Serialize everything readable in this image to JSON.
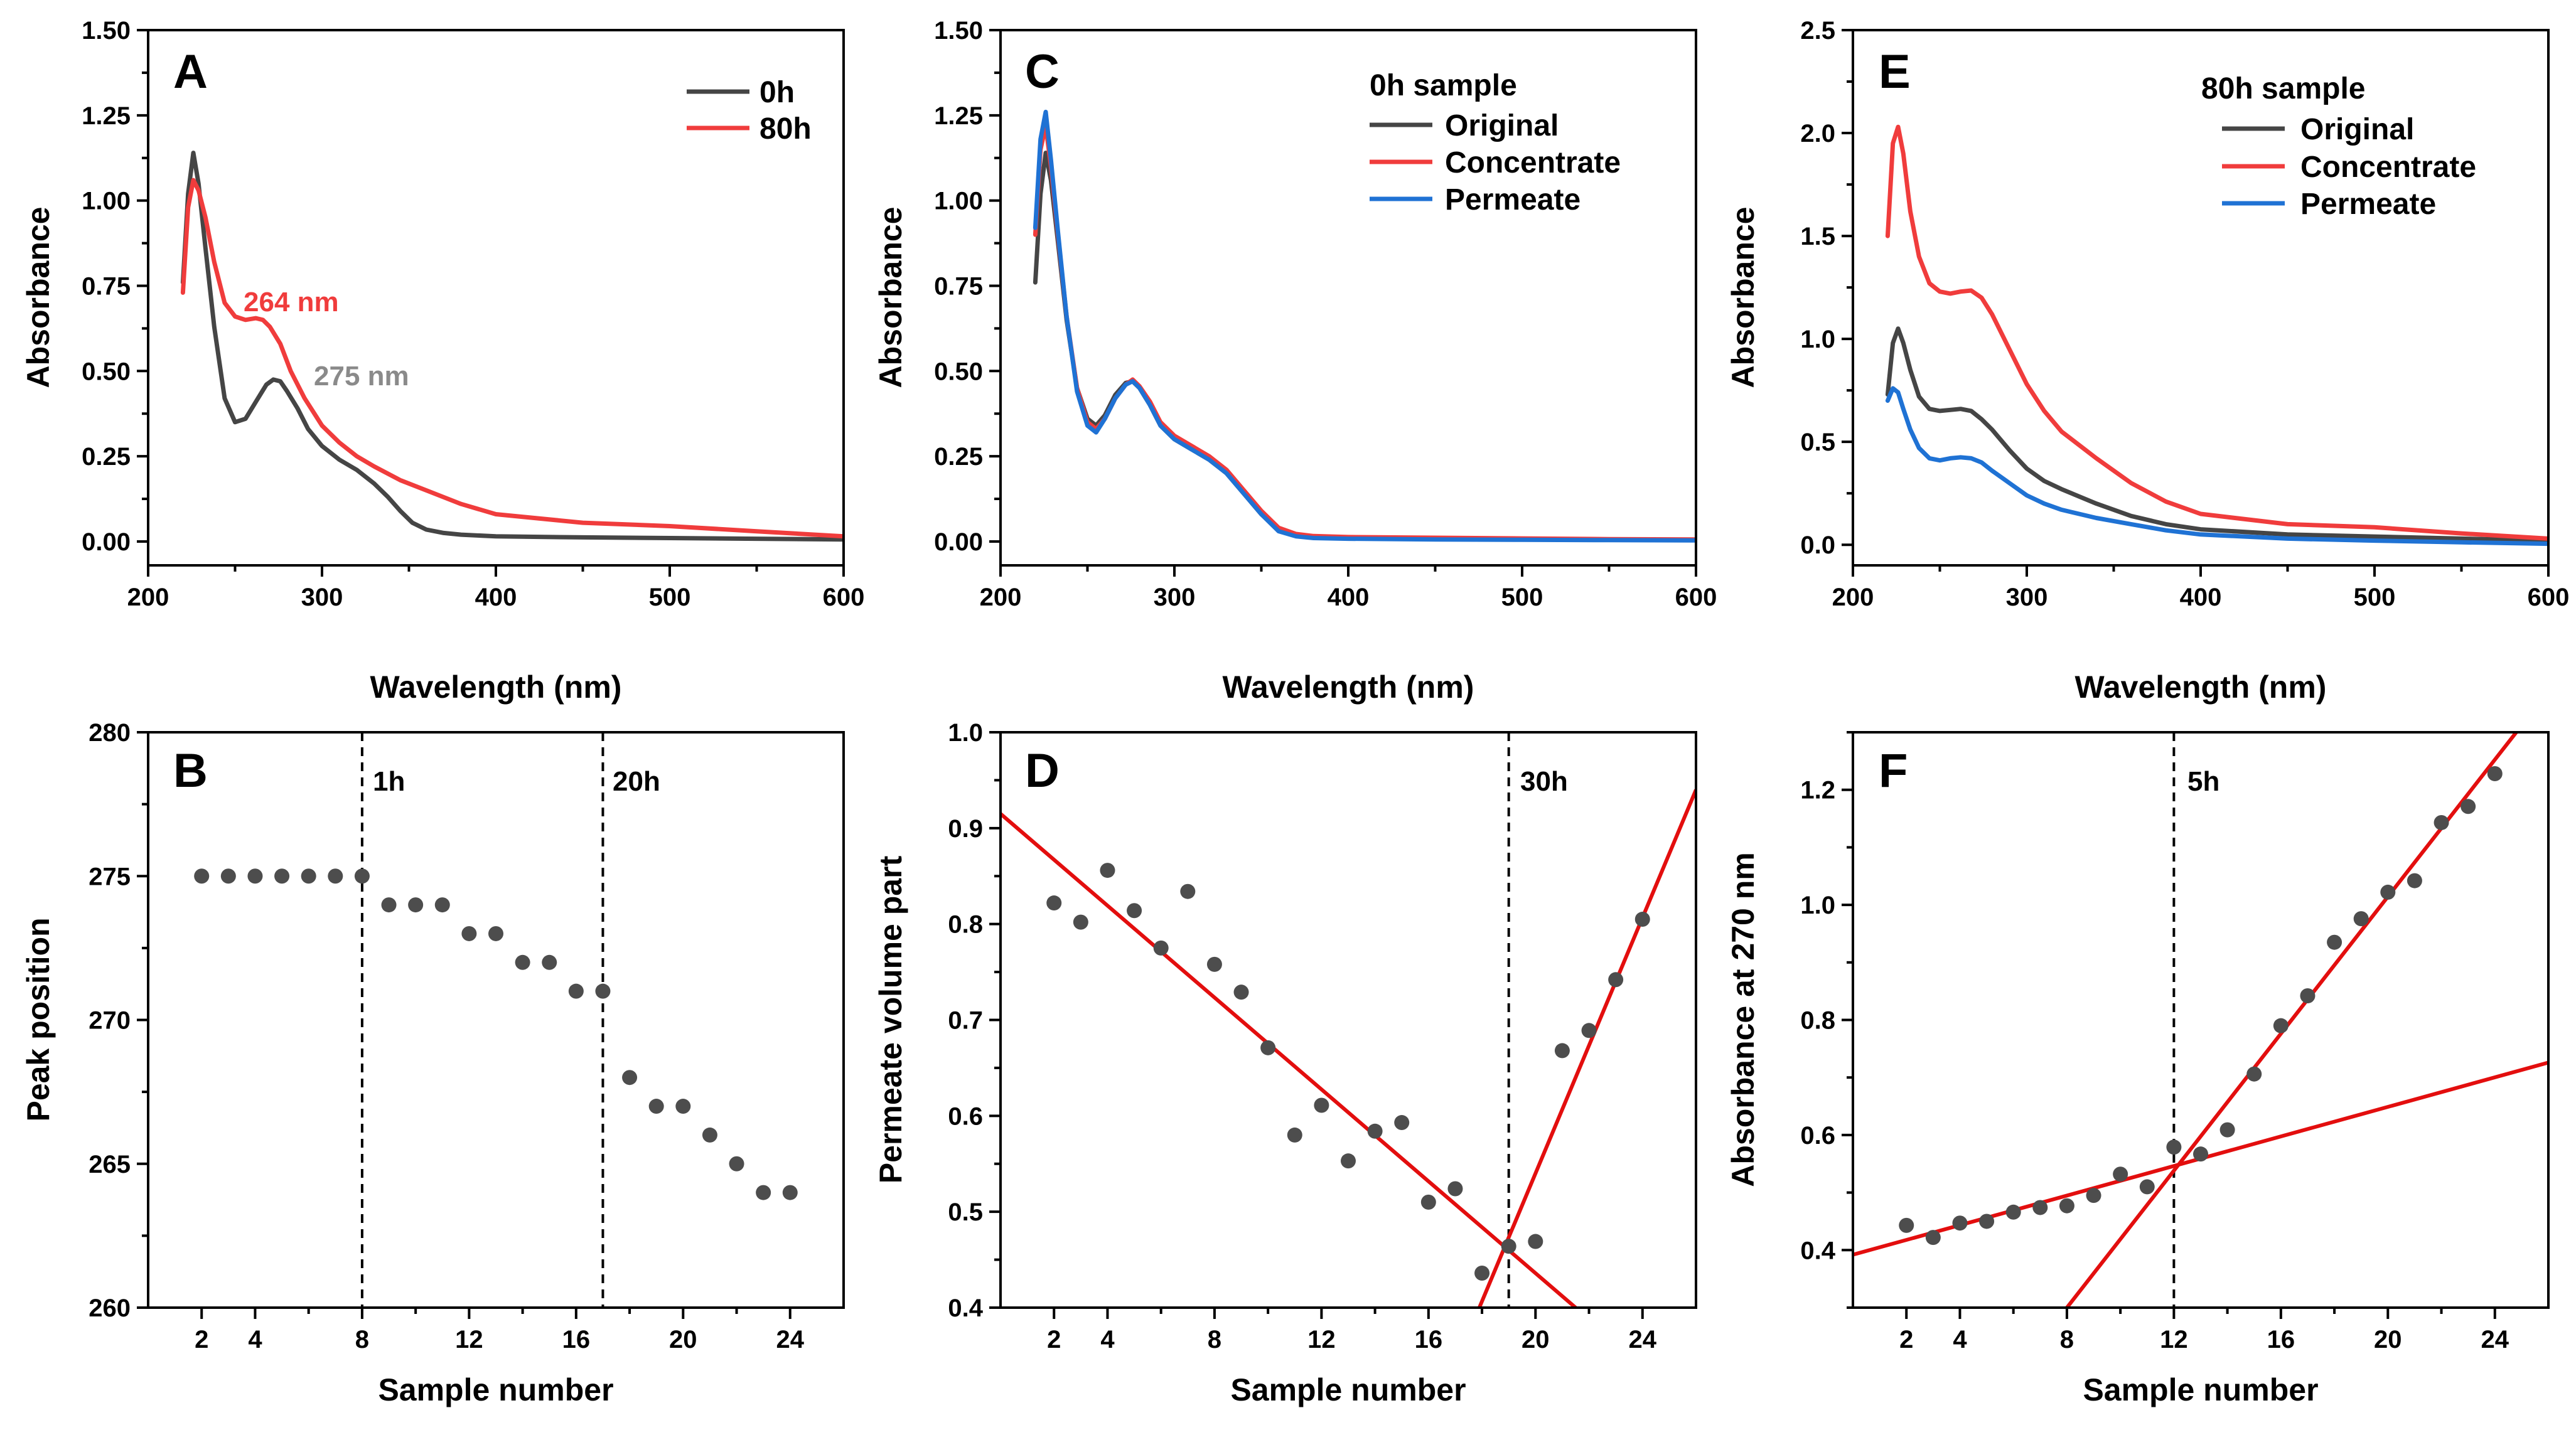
{
  "colors": {
    "h0": "#454545",
    "h80": "#f03c3c",
    "permeate": "#1f72d4",
    "fit": "#e30e0e",
    "dot": "#4d4d4d",
    "annot_gray": "#8a8a8a"
  },
  "chart_data": [
    {
      "panel": "A",
      "type": "line",
      "xlabel": "Wavelength (nm)",
      "ylabel": "Absorbance",
      "xlim": [
        200,
        600
      ],
      "ylim": [
        -0.07,
        1.5
      ],
      "xticks": [
        "200",
        "300",
        "400",
        "500",
        "600"
      ],
      "yticks": [
        "0.00",
        "0.25",
        "0.50",
        "0.75",
        "1.00",
        "1.25",
        "1.50"
      ],
      "legend": {
        "position": "top-right",
        "entries": [
          "0h",
          "80h"
        ]
      },
      "annotations": [
        {
          "text": "264 nm",
          "series": "80h"
        },
        {
          "text": "275 nm",
          "series": "0h"
        }
      ],
      "series": [
        {
          "name": "0h",
          "color": "#454545",
          "x": [
            220,
            223,
            226,
            229,
            233,
            238,
            244,
            250,
            256,
            262,
            268,
            272,
            276,
            280,
            286,
            292,
            300,
            310,
            320,
            330,
            338,
            345,
            352,
            360,
            370,
            380,
            400,
            450,
            500,
            550,
            600
          ],
          "y": [
            0.76,
            1.02,
            1.14,
            1.05,
            0.86,
            0.63,
            0.42,
            0.35,
            0.36,
            0.41,
            0.46,
            0.475,
            0.47,
            0.44,
            0.39,
            0.33,
            0.28,
            0.24,
            0.21,
            0.17,
            0.13,
            0.09,
            0.055,
            0.035,
            0.025,
            0.02,
            0.015,
            0.012,
            0.01,
            0.008,
            0.006
          ]
        },
        {
          "name": "80h",
          "color": "#f03c3c",
          "x": [
            220,
            223,
            226,
            229,
            233,
            238,
            244,
            250,
            256,
            262,
            266,
            270,
            276,
            282,
            290,
            300,
            310,
            320,
            330,
            345,
            360,
            380,
            400,
            450,
            500,
            550,
            600
          ],
          "y": [
            0.73,
            0.98,
            1.06,
            1.03,
            0.95,
            0.82,
            0.7,
            0.66,
            0.65,
            0.655,
            0.65,
            0.63,
            0.58,
            0.5,
            0.42,
            0.34,
            0.29,
            0.25,
            0.22,
            0.18,
            0.15,
            0.11,
            0.08,
            0.055,
            0.045,
            0.03,
            0.015
          ]
        }
      ]
    },
    {
      "panel": "C",
      "type": "line",
      "xlabel": "Wavelength (nm)",
      "ylabel": "Absorbance",
      "xlim": [
        200,
        600
      ],
      "ylim": [
        -0.07,
        1.5
      ],
      "xticks": [
        "200",
        "300",
        "400",
        "500",
        "600"
      ],
      "yticks": [
        "0.00",
        "0.25",
        "0.50",
        "0.75",
        "1.00",
        "1.25",
        "1.50"
      ],
      "legend": {
        "position": "top-right",
        "title": "0h sample",
        "entries": [
          "Original",
          "Concentrate",
          "Permeate"
        ]
      },
      "series": [
        {
          "name": "Original",
          "color": "#454545",
          "x": [
            220,
            223,
            226,
            229,
            233,
            238,
            244,
            250,
            255,
            260,
            266,
            272,
            276,
            280,
            286,
            292,
            300,
            310,
            320,
            330,
            340,
            350,
            360,
            370,
            380,
            400,
            450,
            500,
            550,
            600
          ],
          "y": [
            0.76,
            1.02,
            1.14,
            1.06,
            0.88,
            0.65,
            0.45,
            0.36,
            0.34,
            0.37,
            0.43,
            0.465,
            0.47,
            0.45,
            0.4,
            0.34,
            0.3,
            0.27,
            0.24,
            0.2,
            0.14,
            0.08,
            0.035,
            0.02,
            0.015,
            0.012,
            0.01,
            0.008,
            0.006,
            0.005
          ]
        },
        {
          "name": "Concentrate",
          "color": "#f03c3c",
          "x": [
            220,
            223,
            226,
            229,
            233,
            238,
            244,
            250,
            255,
            260,
            266,
            272,
            276,
            280,
            286,
            292,
            300,
            310,
            320,
            330,
            340,
            350,
            360,
            370,
            380,
            400,
            450,
            500,
            550,
            600
          ],
          "y": [
            0.9,
            1.15,
            1.22,
            1.1,
            0.9,
            0.66,
            0.45,
            0.35,
            0.33,
            0.36,
            0.42,
            0.46,
            0.475,
            0.455,
            0.41,
            0.35,
            0.31,
            0.28,
            0.25,
            0.21,
            0.15,
            0.09,
            0.04,
            0.022,
            0.016,
            0.013,
            0.011,
            0.009,
            0.007,
            0.006
          ]
        },
        {
          "name": "Permeate",
          "color": "#1f72d4",
          "x": [
            220,
            223,
            226,
            229,
            233,
            238,
            244,
            250,
            255,
            260,
            266,
            272,
            276,
            280,
            286,
            292,
            300,
            310,
            320,
            330,
            340,
            350,
            360,
            370,
            380,
            400,
            450,
            500,
            550,
            600
          ],
          "y": [
            0.92,
            1.18,
            1.26,
            1.12,
            0.91,
            0.66,
            0.44,
            0.34,
            0.32,
            0.36,
            0.42,
            0.46,
            0.47,
            0.45,
            0.4,
            0.34,
            0.3,
            0.27,
            0.24,
            0.2,
            0.14,
            0.08,
            0.03,
            0.015,
            0.01,
            0.008,
            0.006,
            0.005,
            0.004,
            0.003
          ]
        }
      ]
    },
    {
      "panel": "E",
      "type": "line",
      "xlabel": "Wavelength (nm)",
      "ylabel": "Absorbance",
      "xlim": [
        200,
        600
      ],
      "ylim": [
        -0.1,
        2.5
      ],
      "xticks": [
        "200",
        "300",
        "400",
        "500",
        "600"
      ],
      "yticks": [
        "0.0",
        "0.5",
        "1.0",
        "1.5",
        "2.0",
        "2.5"
      ],
      "legend": {
        "position": "top-right",
        "title": "80h sample",
        "entries": [
          "Original",
          "Concentrate",
          "Permeate"
        ]
      },
      "series": [
        {
          "name": "Original",
          "color": "#454545",
          "x": [
            220,
            223,
            226,
            229,
            233,
            238,
            244,
            250,
            256,
            262,
            268,
            274,
            280,
            290,
            300,
            310,
            320,
            340,
            360,
            380,
            400,
            450,
            500,
            550,
            600
          ],
          "y": [
            0.73,
            0.98,
            1.05,
            0.98,
            0.85,
            0.72,
            0.66,
            0.65,
            0.655,
            0.66,
            0.65,
            0.61,
            0.56,
            0.46,
            0.37,
            0.31,
            0.27,
            0.2,
            0.14,
            0.1,
            0.075,
            0.05,
            0.04,
            0.03,
            0.02
          ]
        },
        {
          "name": "Concentrate",
          "color": "#f03c3c",
          "x": [
            220,
            223,
            226,
            229,
            233,
            238,
            244,
            250,
            256,
            262,
            268,
            274,
            280,
            290,
            300,
            310,
            320,
            340,
            360,
            380,
            400,
            450,
            500,
            550,
            600
          ],
          "y": [
            1.5,
            1.95,
            2.03,
            1.9,
            1.62,
            1.4,
            1.27,
            1.23,
            1.22,
            1.23,
            1.235,
            1.2,
            1.12,
            0.95,
            0.78,
            0.65,
            0.55,
            0.42,
            0.3,
            0.21,
            0.15,
            0.1,
            0.085,
            0.055,
            0.03
          ]
        },
        {
          "name": "Permeate",
          "color": "#1f72d4",
          "x": [
            220,
            223,
            226,
            229,
            233,
            238,
            244,
            250,
            256,
            262,
            268,
            274,
            280,
            290,
            300,
            310,
            320,
            340,
            360,
            380,
            400,
            450,
            500,
            550,
            600
          ],
          "y": [
            0.7,
            0.76,
            0.74,
            0.66,
            0.56,
            0.47,
            0.42,
            0.41,
            0.42,
            0.425,
            0.42,
            0.4,
            0.36,
            0.3,
            0.24,
            0.2,
            0.17,
            0.13,
            0.1,
            0.07,
            0.05,
            0.03,
            0.02,
            0.012,
            0.005
          ]
        }
      ]
    },
    {
      "panel": "B",
      "type": "scatter",
      "xlabel": "Sample number",
      "ylabel": "Peak position",
      "xlim": [
        0,
        26
      ],
      "ylim": [
        260,
        280
      ],
      "xticks": [
        "2",
        "4",
        "8",
        "12",
        "16",
        "20",
        "24"
      ],
      "yticks": [
        "260",
        "265",
        "270",
        "275",
        "280"
      ],
      "vlines": [
        {
          "x": 8,
          "label": "1h"
        },
        {
          "x": 17,
          "label": "20h"
        }
      ],
      "x": [
        2,
        3,
        4,
        5,
        6,
        7,
        8,
        9,
        10,
        11,
        12,
        13,
        14,
        15,
        16,
        17,
        18,
        19,
        20,
        21,
        22,
        23,
        24
      ],
      "y": [
        275,
        275,
        275,
        275,
        275,
        275,
        275,
        274,
        274,
        274,
        273,
        273,
        272,
        272,
        271,
        271,
        268,
        267,
        267,
        266,
        265,
        264,
        264
      ]
    },
    {
      "panel": "D",
      "type": "scatter",
      "xlabel": "Sample number",
      "ylabel": "Permeate volume part",
      "xlim": [
        0,
        26
      ],
      "ylim": [
        0.4,
        1.0
      ],
      "xticks": [
        "2",
        "4",
        "8",
        "12",
        "16",
        "20",
        "24"
      ],
      "yticks": [
        "0.4",
        "0.5",
        "0.6",
        "0.7",
        "0.8",
        "0.9",
        "1.0"
      ],
      "vlines": [
        {
          "x": 19,
          "label": "30h"
        }
      ],
      "fit_lines": [
        {
          "x1": 0,
          "y1": 0.915,
          "x2": 21.5,
          "y2": 0.4
        },
        {
          "x1": 17.9,
          "y1": 0.4,
          "x2": 26,
          "y2": 0.94
        }
      ],
      "x": [
        2,
        3,
        4,
        5,
        6,
        7,
        8,
        9,
        10,
        11,
        12,
        13,
        14,
        15,
        16,
        17,
        18,
        19,
        20,
        21,
        22,
        23,
        24
      ],
      "y": [
        0.822,
        0.802,
        0.856,
        0.814,
        0.775,
        0.834,
        0.758,
        0.729,
        0.671,
        0.58,
        0.611,
        0.553,
        0.584,
        0.593,
        0.51,
        0.524,
        0.436,
        0.464,
        0.469,
        0.668,
        0.689,
        0.742,
        0.805
      ]
    },
    {
      "panel": "F",
      "type": "scatter",
      "xlabel": "Sample number",
      "ylabel": "Absorbance at 270 nm",
      "xlim": [
        0,
        26
      ],
      "ylim": [
        0.3,
        1.3
      ],
      "xticks": [
        "2",
        "4",
        "8",
        "12",
        "16",
        "20",
        "24"
      ],
      "yticks": [
        "0.4",
        "0.6",
        "0.8",
        "1.0",
        "1.2"
      ],
      "vlines": [
        {
          "x": 12,
          "label": "5h"
        }
      ],
      "fit_lines": [
        {
          "x1": 0,
          "y1": 0.392,
          "x2": 26,
          "y2": 0.726
        },
        {
          "x1": 8,
          "y1": 0.3,
          "x2": 24.8,
          "y2": 1.3
        }
      ],
      "x": [
        2,
        3,
        4,
        5,
        6,
        7,
        8,
        9,
        10,
        11,
        12,
        13,
        14,
        15,
        16,
        17,
        18,
        19,
        20,
        21,
        22,
        23,
        24
      ],
      "y": [
        0.443,
        0.422,
        0.447,
        0.45,
        0.466,
        0.474,
        0.477,
        0.495,
        0.532,
        0.51,
        0.579,
        0.567,
        0.609,
        0.706,
        0.79,
        0.842,
        0.935,
        0.976,
        1.022,
        1.042,
        1.143,
        1.171,
        1.228
      ]
    }
  ]
}
